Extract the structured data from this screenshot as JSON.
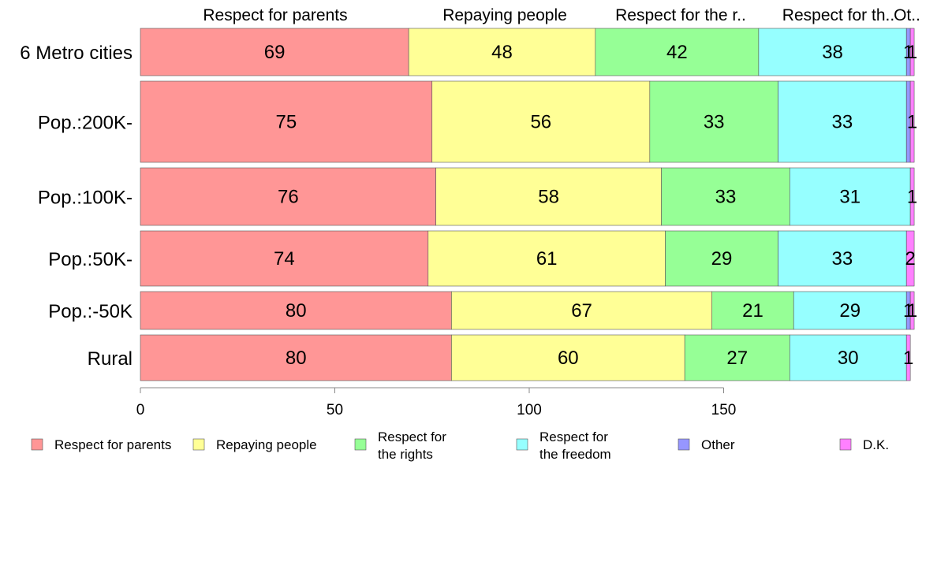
{
  "chart_data": {
    "type": "bar",
    "orientation": "horizontal",
    "stacked": true,
    "categories": [
      "6 Metro cities",
      "Pop.:200K-",
      "Pop.:100K-",
      "Pop.:50K-",
      "Pop.:-50K",
      "Rural"
    ],
    "series": [
      {
        "name": "Respect for parents",
        "legend_lines": [
          "Respect for parents"
        ],
        "top_label": "Respect for parents",
        "color": "#ff9696",
        "values": [
          69,
          75,
          76,
          74,
          80,
          80
        ],
        "labels": [
          "69",
          "75",
          "76",
          "74",
          "80",
          "80"
        ]
      },
      {
        "name": "Repaying people",
        "legend_lines": [
          "Repaying people"
        ],
        "top_label": "Repaying people",
        "color": "#ffff96",
        "values": [
          48,
          56,
          58,
          61,
          67,
          60
        ],
        "labels": [
          "48",
          "56",
          "58",
          "61",
          "67",
          "60"
        ]
      },
      {
        "name": "Respect for the rights",
        "legend_lines": [
          "Respect for",
          "the rights"
        ],
        "top_label": "Respect for the r..",
        "color": "#96ff96",
        "values": [
          42,
          33,
          33,
          29,
          21,
          27
        ],
        "labels": [
          "42",
          "33",
          "33",
          "29",
          "21",
          "27"
        ]
      },
      {
        "name": "Respect for the freedom",
        "legend_lines": [
          "Respect for",
          "the freedom"
        ],
        "top_label": "Respect for th..",
        "color": "#96ffff",
        "values": [
          38,
          33,
          31,
          33,
          29,
          30
        ],
        "labels": [
          "38",
          "33",
          "31",
          "33",
          "29",
          "30"
        ]
      },
      {
        "name": "Other",
        "legend_lines": [
          "Other"
        ],
        "top_label": "Ot..",
        "color": "#9696ff",
        "values": [
          1,
          1,
          0,
          0,
          1,
          0
        ],
        "labels": [
          "1",
          "",
          "",
          "",
          "1",
          ""
        ]
      },
      {
        "name": "D.K.",
        "legend_lines": [
          "D.K."
        ],
        "top_label": "",
        "color": "#ff80ff",
        "values": [
          1,
          1,
          1,
          2,
          1,
          1
        ],
        "labels": [
          "1",
          "1",
          "1",
          "2",
          "1",
          "1"
        ]
      }
    ],
    "xticks": [
      "0",
      "50",
      "100",
      "150"
    ],
    "xlim": [
      0,
      200
    ],
    "xlabel": "",
    "ylabel": "",
    "title": "",
    "grid": false,
    "legend_position": "bottom"
  }
}
